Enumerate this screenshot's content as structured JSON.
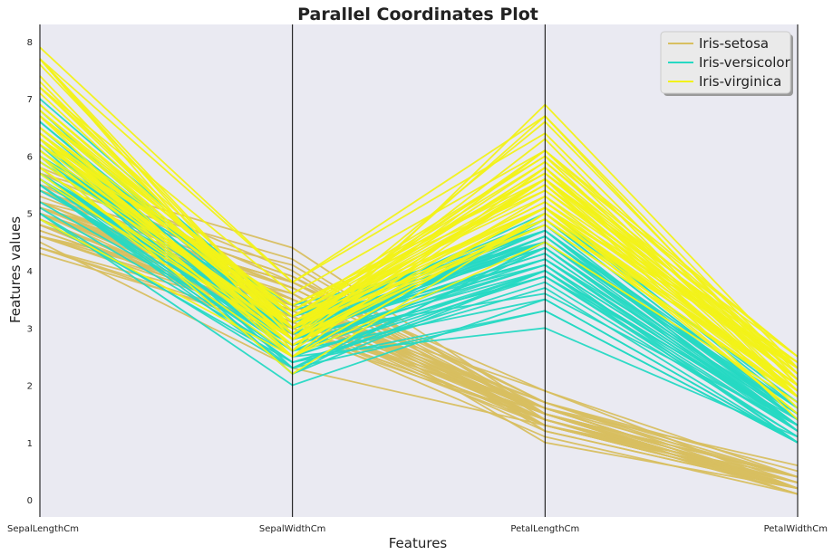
{
  "chart_data": {
    "type": "parallel-coordinates",
    "title": "Parallel Coordinates Plot",
    "xlabel": "Features",
    "ylabel": "Features values",
    "categories": [
      "SepalLengthCm",
      "SepalWidthCm",
      "PetalLengthCm",
      "PetalWidthCm"
    ],
    "ylim": [
      -0.3,
      8.3
    ],
    "yticks": [
      0,
      1,
      2,
      3,
      4,
      5,
      6,
      7,
      8
    ],
    "grid": false,
    "legend_position": "top-right",
    "background_color": "#eaeaf2",
    "series": [
      {
        "name": "Iris-setosa",
        "color": "#d8bf60",
        "lines": [
          [
            5.1,
            3.5,
            1.4,
            0.2
          ],
          [
            4.9,
            3.0,
            1.4,
            0.2
          ],
          [
            4.7,
            3.2,
            1.3,
            0.2
          ],
          [
            4.6,
            3.1,
            1.5,
            0.2
          ],
          [
            5.0,
            3.6,
            1.4,
            0.2
          ],
          [
            5.4,
            3.9,
            1.7,
            0.4
          ],
          [
            4.6,
            3.4,
            1.4,
            0.3
          ],
          [
            5.0,
            3.4,
            1.5,
            0.2
          ],
          [
            4.4,
            2.9,
            1.4,
            0.2
          ],
          [
            4.9,
            3.1,
            1.5,
            0.1
          ],
          [
            5.4,
            3.7,
            1.5,
            0.2
          ],
          [
            4.8,
            3.4,
            1.6,
            0.2
          ],
          [
            4.8,
            3.0,
            1.4,
            0.1
          ],
          [
            4.3,
            3.0,
            1.1,
            0.1
          ],
          [
            5.8,
            4.0,
            1.2,
            0.2
          ],
          [
            5.7,
            4.4,
            1.5,
            0.4
          ],
          [
            5.4,
            3.9,
            1.3,
            0.4
          ],
          [
            5.1,
            3.5,
            1.4,
            0.3
          ],
          [
            5.7,
            3.8,
            1.7,
            0.3
          ],
          [
            5.1,
            3.8,
            1.5,
            0.3
          ],
          [
            5.4,
            3.4,
            1.7,
            0.2
          ],
          [
            5.1,
            3.7,
            1.5,
            0.4
          ],
          [
            4.6,
            3.6,
            1.0,
            0.2
          ],
          [
            5.1,
            3.3,
            1.7,
            0.5
          ],
          [
            4.8,
            3.4,
            1.9,
            0.2
          ],
          [
            5.0,
            3.0,
            1.6,
            0.2
          ],
          [
            5.0,
            3.4,
            1.6,
            0.4
          ],
          [
            5.2,
            3.5,
            1.5,
            0.2
          ],
          [
            5.2,
            3.4,
            1.4,
            0.2
          ],
          [
            4.7,
            3.2,
            1.6,
            0.2
          ],
          [
            4.8,
            3.1,
            1.6,
            0.2
          ],
          [
            5.4,
            3.4,
            1.5,
            0.4
          ],
          [
            5.2,
            4.1,
            1.5,
            0.1
          ],
          [
            5.5,
            4.2,
            1.4,
            0.2
          ],
          [
            4.9,
            3.1,
            1.5,
            0.1
          ],
          [
            5.0,
            3.2,
            1.2,
            0.2
          ],
          [
            5.5,
            3.5,
            1.3,
            0.2
          ],
          [
            4.4,
            3.0,
            1.3,
            0.2
          ],
          [
            5.1,
            3.4,
            1.5,
            0.2
          ],
          [
            5.0,
            3.5,
            1.3,
            0.3
          ],
          [
            4.5,
            2.3,
            1.3,
            0.3
          ],
          [
            4.4,
            3.2,
            1.3,
            0.2
          ],
          [
            5.0,
            3.5,
            1.6,
            0.6
          ],
          [
            5.1,
            3.8,
            1.9,
            0.4
          ],
          [
            4.8,
            3.0,
            1.4,
            0.3
          ],
          [
            5.1,
            3.8,
            1.6,
            0.2
          ],
          [
            4.6,
            3.2,
            1.4,
            0.2
          ],
          [
            5.3,
            3.7,
            1.5,
            0.2
          ],
          [
            5.0,
            3.3,
            1.4,
            0.2
          ]
        ]
      },
      {
        "name": "Iris-versicolor",
        "color": "#26d9c3",
        "lines": [
          [
            7.0,
            3.2,
            4.7,
            1.4
          ],
          [
            6.4,
            3.2,
            4.5,
            1.5
          ],
          [
            6.9,
            3.1,
            4.9,
            1.5
          ],
          [
            5.5,
            2.3,
            4.0,
            1.3
          ],
          [
            6.5,
            2.8,
            4.6,
            1.5
          ],
          [
            5.7,
            2.8,
            4.5,
            1.3
          ],
          [
            6.3,
            3.3,
            4.7,
            1.6
          ],
          [
            4.9,
            2.4,
            3.3,
            1.0
          ],
          [
            6.6,
            2.9,
            4.6,
            1.3
          ],
          [
            5.2,
            2.7,
            3.9,
            1.4
          ],
          [
            5.0,
            2.0,
            3.5,
            1.0
          ],
          [
            5.9,
            3.0,
            4.2,
            1.5
          ],
          [
            6.0,
            2.2,
            4.0,
            1.0
          ],
          [
            6.1,
            2.9,
            4.7,
            1.4
          ],
          [
            5.6,
            2.9,
            3.6,
            1.3
          ],
          [
            6.7,
            3.1,
            4.4,
            1.4
          ],
          [
            5.6,
            3.0,
            4.5,
            1.5
          ],
          [
            5.8,
            2.7,
            4.1,
            1.0
          ],
          [
            6.2,
            2.2,
            4.5,
            1.5
          ],
          [
            5.6,
            2.5,
            3.9,
            1.1
          ],
          [
            5.9,
            3.2,
            4.8,
            1.8
          ],
          [
            6.1,
            2.8,
            4.0,
            1.3
          ],
          [
            6.3,
            2.5,
            4.9,
            1.5
          ],
          [
            6.1,
            2.8,
            4.7,
            1.2
          ],
          [
            6.4,
            2.9,
            4.3,
            1.3
          ],
          [
            6.6,
            3.0,
            4.4,
            1.4
          ],
          [
            6.8,
            2.8,
            4.8,
            1.4
          ],
          [
            6.7,
            3.0,
            5.0,
            1.7
          ],
          [
            6.0,
            2.9,
            4.5,
            1.5
          ],
          [
            5.7,
            2.6,
            3.5,
            1.0
          ],
          [
            5.5,
            2.4,
            3.8,
            1.1
          ],
          [
            5.5,
            2.4,
            3.7,
            1.0
          ],
          [
            5.8,
            2.7,
            3.9,
            1.2
          ],
          [
            6.0,
            2.7,
            5.1,
            1.6
          ],
          [
            5.4,
            3.0,
            4.5,
            1.5
          ],
          [
            6.0,
            3.4,
            4.5,
            1.6
          ],
          [
            6.7,
            3.1,
            4.7,
            1.5
          ],
          [
            6.3,
            2.3,
            4.4,
            1.3
          ],
          [
            5.6,
            3.0,
            4.1,
            1.3
          ],
          [
            5.5,
            2.5,
            4.0,
            1.3
          ],
          [
            5.5,
            2.6,
            4.4,
            1.2
          ],
          [
            6.1,
            3.0,
            4.6,
            1.4
          ],
          [
            5.8,
            2.6,
            4.0,
            1.2
          ],
          [
            5.0,
            2.3,
            3.3,
            1.0
          ],
          [
            5.6,
            2.7,
            4.2,
            1.3
          ],
          [
            5.7,
            3.0,
            4.2,
            1.2
          ],
          [
            5.7,
            2.9,
            4.2,
            1.3
          ],
          [
            6.2,
            2.9,
            4.3,
            1.3
          ],
          [
            5.1,
            2.5,
            3.0,
            1.1
          ],
          [
            5.7,
            2.8,
            4.1,
            1.3
          ]
        ]
      },
      {
        "name": "Iris-virginica",
        "color": "#f2f218",
        "lines": [
          [
            6.3,
            3.3,
            6.0,
            2.5
          ],
          [
            5.8,
            2.7,
            5.1,
            1.9
          ],
          [
            7.1,
            3.0,
            5.9,
            2.1
          ],
          [
            6.3,
            2.9,
            5.6,
            1.8
          ],
          [
            6.5,
            3.0,
            5.8,
            2.2
          ],
          [
            7.6,
            3.0,
            6.6,
            2.1
          ],
          [
            4.9,
            2.5,
            4.5,
            1.7
          ],
          [
            7.3,
            2.9,
            6.3,
            1.8
          ],
          [
            6.7,
            2.5,
            5.8,
            1.8
          ],
          [
            7.2,
            3.6,
            6.1,
            2.5
          ],
          [
            6.5,
            3.2,
            5.1,
            2.0
          ],
          [
            6.4,
            2.7,
            5.3,
            1.9
          ],
          [
            6.8,
            3.0,
            5.5,
            2.1
          ],
          [
            5.7,
            2.5,
            5.0,
            2.0
          ],
          [
            5.8,
            2.8,
            5.1,
            2.4
          ],
          [
            6.4,
            3.2,
            5.3,
            2.3
          ],
          [
            6.5,
            3.0,
            5.5,
            1.8
          ],
          [
            7.7,
            3.8,
            6.7,
            2.2
          ],
          [
            7.7,
            2.6,
            6.9,
            2.3
          ],
          [
            6.0,
            2.2,
            5.0,
            1.5
          ],
          [
            6.9,
            3.2,
            5.7,
            2.3
          ],
          [
            5.6,
            2.8,
            4.9,
            2.0
          ],
          [
            7.7,
            2.8,
            6.7,
            2.0
          ],
          [
            6.3,
            2.7,
            4.9,
            1.8
          ],
          [
            6.7,
            3.3,
            5.7,
            2.1
          ],
          [
            7.2,
            3.2,
            6.0,
            1.8
          ],
          [
            6.2,
            2.8,
            4.8,
            1.8
          ],
          [
            6.1,
            3.0,
            4.9,
            1.8
          ],
          [
            6.4,
            2.8,
            5.6,
            2.1
          ],
          [
            7.2,
            3.0,
            5.8,
            1.6
          ],
          [
            7.4,
            2.8,
            6.1,
            1.9
          ],
          [
            7.9,
            3.8,
            6.4,
            2.0
          ],
          [
            6.4,
            2.8,
            5.6,
            2.2
          ],
          [
            6.3,
            2.8,
            5.1,
            1.5
          ],
          [
            6.1,
            2.6,
            5.6,
            1.4
          ],
          [
            7.7,
            3.0,
            6.1,
            2.3
          ],
          [
            6.3,
            3.4,
            5.6,
            2.4
          ],
          [
            6.4,
            3.1,
            5.5,
            1.8
          ],
          [
            6.0,
            3.0,
            4.8,
            1.8
          ],
          [
            6.9,
            3.1,
            5.4,
            2.1
          ],
          [
            6.7,
            3.1,
            5.6,
            2.4
          ],
          [
            6.9,
            3.1,
            5.1,
            2.3
          ],
          [
            5.8,
            2.7,
            5.1,
            1.9
          ],
          [
            6.8,
            3.2,
            5.9,
            2.3
          ],
          [
            6.7,
            3.3,
            5.7,
            2.5
          ],
          [
            6.7,
            3.0,
            5.2,
            2.3
          ],
          [
            6.3,
            2.5,
            5.0,
            1.9
          ],
          [
            6.5,
            3.0,
            5.2,
            2.0
          ],
          [
            6.2,
            3.4,
            5.4,
            2.3
          ],
          [
            5.9,
            3.0,
            5.1,
            1.8
          ]
        ]
      }
    ]
  }
}
